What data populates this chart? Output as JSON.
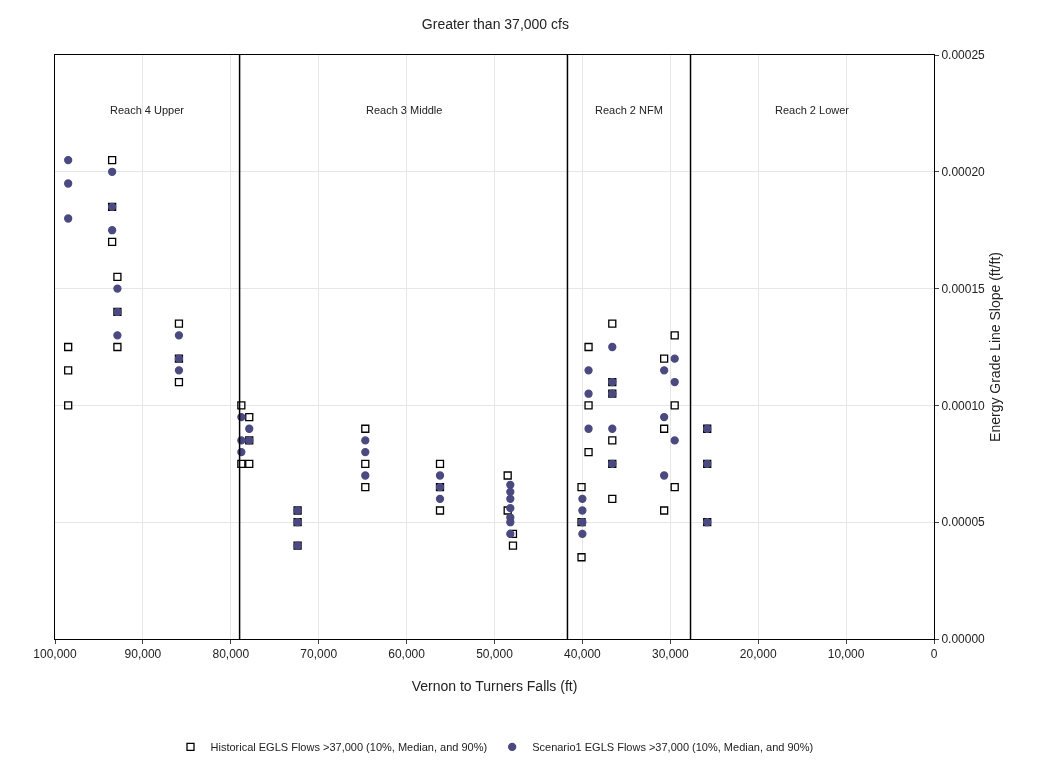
{
  "chart_data": {
    "type": "scatter",
    "title": "Greater than 37,000 cfs",
    "xlabel": "Vernon to Turners Falls (ft)",
    "ylabel": "Energy Grade Line Slope (ft/ft)",
    "xlim": [
      100000,
      0
    ],
    "xticks": [
      {
        "value": 100000,
        "label": "100,000"
      },
      {
        "value": 90000,
        "label": "90,000"
      },
      {
        "value": 80000,
        "label": "80,000"
      },
      {
        "value": 70000,
        "label": "70,000"
      },
      {
        "value": 60000,
        "label": "60,000"
      },
      {
        "value": 50000,
        "label": "50,000"
      },
      {
        "value": 40000,
        "label": "40,000"
      },
      {
        "value": 30000,
        "label": "30,000"
      },
      {
        "value": 20000,
        "label": "20,000"
      },
      {
        "value": 10000,
        "label": "10,000"
      },
      0
    ],
    "ylim": [
      0,
      0.00025
    ],
    "yticks": [
      {
        "value": 0,
        "label": "0.00000"
      },
      {
        "value": 5e-05,
        "label": "0.00005"
      },
      {
        "value": 0.0001,
        "label": "0.00010"
      },
      {
        "value": 0.00015,
        "label": "0.00015"
      },
      {
        "value": 0.0002,
        "label": "0.00020"
      },
      {
        "value": 0.00025,
        "label": "0.00025"
      }
    ],
    "grid": true,
    "legend": "bottom",
    "series": [
      {
        "name": "Historical EGLS Flows >37,000 (10%, Median, and 90%)",
        "color": "#000000",
        "marker": "square",
        "x": [
          98500,
          98500,
          98500,
          93500,
          93500,
          93500,
          92900,
          92900,
          92900,
          85900,
          85900,
          85900,
          78800,
          78800,
          77900,
          77900,
          77900,
          72400,
          72400,
          72400,
          64700,
          64700,
          64700,
          56200,
          56200,
          56200,
          48500,
          48500,
          47900,
          47900,
          40100,
          40100,
          40100,
          39300,
          39300,
          39300,
          36600,
          36600,
          36600,
          36600,
          36600,
          36600,
          30700,
          30700,
          30700,
          29500,
          29500,
          29500,
          25800,
          25800,
          25800
        ],
        "values": [
          0.000125,
          0.000115,
          0.0001,
          0.000205,
          0.000185,
          0.00017,
          0.000155,
          0.00014,
          0.000125,
          0.000135,
          0.00012,
          0.00011,
          0.0001,
          7.5e-05,
          9.5e-05,
          8.5e-05,
          7.5e-05,
          5.5e-05,
          5e-05,
          4e-05,
          9e-05,
          7.5e-05,
          6.5e-05,
          7.5e-05,
          6.5e-05,
          5.5e-05,
          7e-05,
          5.5e-05,
          4.5e-05,
          4e-05,
          6.5e-05,
          5e-05,
          3.5e-05,
          0.000125,
          0.0001,
          8e-05,
          0.000135,
          0.00011,
          0.000105,
          8.5e-05,
          7.5e-05,
          6e-05,
          0.00012,
          9e-05,
          5.5e-05,
          0.00013,
          0.0001,
          6.5e-05,
          9e-05,
          7.5e-05,
          5e-05
        ]
      },
      {
        "name": "Scenario1 EGLS Flows >37,000 (10%, Median, and 90%)",
        "color": "#4a4a80",
        "marker": "circle",
        "x": [
          98500,
          98500,
          98500,
          93500,
          93500,
          93500,
          92900,
          92900,
          92900,
          85900,
          85900,
          85900,
          78800,
          78800,
          78800,
          77900,
          77900,
          72400,
          72400,
          72400,
          64700,
          64700,
          64700,
          56200,
          56200,
          56200,
          48200,
          48200,
          48200,
          48200,
          48200,
          48200,
          48200,
          40000,
          40000,
          40000,
          40000,
          39300,
          39300,
          39300,
          36600,
          36600,
          36600,
          36600,
          36600,
          30700,
          30700,
          30700,
          29500,
          29500,
          29500,
          25800,
          25800,
          25800
        ],
        "values": [
          0.000205,
          0.000195,
          0.00018,
          0.0002,
          0.000185,
          0.000175,
          0.00015,
          0.00014,
          0.00013,
          0.00013,
          0.00012,
          0.000115,
          9.5e-05,
          8.5e-05,
          8e-05,
          9e-05,
          8.5e-05,
          5.5e-05,
          5e-05,
          4e-05,
          8.5e-05,
          8e-05,
          7e-05,
          7e-05,
          6.5e-05,
          6e-05,
          6.6e-05,
          6.3e-05,
          6e-05,
          5.6e-05,
          5.2e-05,
          5e-05,
          4.5e-05,
          6e-05,
          5.5e-05,
          5e-05,
          4.5e-05,
          0.000115,
          0.000105,
          9e-05,
          0.000125,
          0.00011,
          0.000105,
          9e-05,
          7.5e-05,
          0.000115,
          9.5e-05,
          7e-05,
          0.00012,
          0.00011,
          8.5e-05,
          9e-05,
          7.5e-05,
          5e-05
        ]
      }
    ],
    "ref_lines": [
      {
        "axis": "x",
        "value": 79000,
        "color": "#000000"
      },
      {
        "axis": "x",
        "value": 41700,
        "color": "#000000"
      },
      {
        "axis": "x",
        "value": 27700,
        "color": "#000000"
      }
    ],
    "annotations": [
      "Reach 4 Upper",
      "Reach 3 Middle",
      "Reach 2 NFM",
      "Reach 2 Lower"
    ]
  }
}
